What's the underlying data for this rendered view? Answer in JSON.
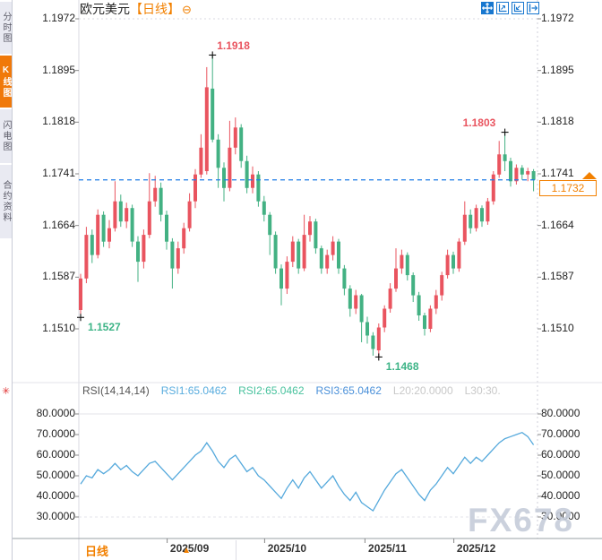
{
  "header": {
    "title": "欧元美元",
    "period": "【日线】",
    "collapse_glyph": "⊖"
  },
  "toolbar": {
    "icons": [
      {
        "name": "move-icon"
      },
      {
        "name": "zoom-in-axis-icon"
      },
      {
        "name": "zoom-out-axis-icon"
      },
      {
        "name": "pan-right-icon"
      }
    ]
  },
  "sidebar": {
    "tabs": [
      {
        "label": "分时图",
        "active": false
      },
      {
        "label": "K线图",
        "active": true
      },
      {
        "label": "闪电图",
        "active": false
      },
      {
        "label": "合约资料",
        "active": false
      }
    ]
  },
  "bottom": {
    "period_label": "日线",
    "arrow": "▲"
  },
  "watermark": "FX678",
  "colors": {
    "accent_orange": "#f28000",
    "up_red": "#e9545f",
    "down_green": "#43b183",
    "annotation_up": "#e9545f",
    "annotation_down": "#3db487",
    "rsi_line": "#55a9dc",
    "dashed_line": "#1f7ce8",
    "icon_blue": "#1877cf",
    "grid": "#e3e3e8",
    "axis": "#9aa0a6",
    "tick": "#888888"
  },
  "chart_data": {
    "type": "candlestick",
    "title": "欧元美元 日线 (EUR/USD Daily)",
    "main": {
      "y_ticks": [
        "1.1972",
        "1.1895",
        "1.1818",
        "1.1741",
        "1.1664",
        "1.1587",
        "1.1510"
      ],
      "ylim": [
        1.151,
        1.1972
      ],
      "current_price": "1.1732",
      "current_price_value": 1.1732,
      "x_labels": [
        {
          "label": "2025/09",
          "index": 19
        },
        {
          "label": "2025/10",
          "index": 36
        },
        {
          "label": "2025/11",
          "index": 53.5
        },
        {
          "label": "2025/12",
          "index": 69
        }
      ],
      "annotations": [
        {
          "text": "1.1918",
          "price": 1.1918,
          "index": 23,
          "trend": "up",
          "pos": "above-right"
        },
        {
          "text": "1.1803",
          "price": 1.1803,
          "index": 74,
          "trend": "up",
          "pos": "above-left"
        },
        {
          "text": "1.1527",
          "price": 1.1527,
          "index": 0,
          "trend": "down",
          "pos": "below-right"
        },
        {
          "text": "1.1468",
          "price": 1.1468,
          "index": 52,
          "trend": "down",
          "pos": "below-right"
        }
      ],
      "candles": [
        [
          1.1538,
          1.1592,
          1.1527,
          1.1585
        ],
        [
          1.1585,
          1.1662,
          1.1578,
          1.165
        ],
        [
          1.165,
          1.1658,
          1.1608,
          1.162
        ],
        [
          1.162,
          1.1688,
          1.1615,
          1.168
        ],
        [
          1.168,
          1.1685,
          1.1632,
          1.164
        ],
        [
          1.164,
          1.1672,
          1.163,
          1.166
        ],
        [
          1.166,
          1.173,
          1.1655,
          1.17
        ],
        [
          1.17,
          1.171,
          1.1662,
          1.167
        ],
        [
          1.167,
          1.1698,
          1.166,
          1.169
        ],
        [
          1.169,
          1.1695,
          1.1632,
          1.164
        ],
        [
          1.164,
          1.1648,
          1.158,
          1.161
        ],
        [
          1.161,
          1.1658,
          1.16,
          1.165
        ],
        [
          1.165,
          1.1742,
          1.1645,
          1.17
        ],
        [
          1.17,
          1.1738,
          1.1692,
          1.172
        ],
        [
          1.172,
          1.1728,
          1.167,
          1.168
        ],
        [
          1.168,
          1.1686,
          1.1628,
          1.164
        ],
        [
          1.164,
          1.1645,
          1.157,
          1.16
        ],
        [
          1.16,
          1.164,
          1.1592,
          1.163
        ],
        [
          1.163,
          1.1668,
          1.1622,
          1.166
        ],
        [
          1.166,
          1.1712,
          1.1655,
          1.17
        ],
        [
          1.17,
          1.1748,
          1.169,
          1.174
        ],
        [
          1.174,
          1.18,
          1.1735,
          1.178
        ],
        [
          1.1745,
          1.19,
          1.174,
          1.187
        ],
        [
          1.1868,
          1.1918,
          1.1788,
          1.1792
        ],
        [
          1.1792,
          1.18,
          1.172,
          1.175
        ],
        [
          1.175,
          1.1758,
          1.17,
          1.172
        ],
        [
          1.172,
          1.182,
          1.1715,
          1.178
        ],
        [
          1.178,
          1.1825,
          1.177,
          1.181
        ],
        [
          1.181,
          1.1815,
          1.175,
          1.176
        ],
        [
          1.176,
          1.1768,
          1.1712,
          1.172
        ],
        [
          1.172,
          1.1752,
          1.1712,
          1.174
        ],
        [
          1.174,
          1.1745,
          1.1692,
          1.17
        ],
        [
          1.17,
          1.1708,
          1.167,
          1.168
        ],
        [
          1.168,
          1.1684,
          1.162,
          1.165
        ],
        [
          1.165,
          1.1655,
          1.1592,
          1.16
        ],
        [
          1.16,
          1.1606,
          1.1545,
          1.157
        ],
        [
          1.157,
          1.1618,
          1.1562,
          1.161
        ],
        [
          1.161,
          1.1648,
          1.1602,
          1.164
        ],
        [
          1.164,
          1.1644,
          1.1592,
          1.16
        ],
        [
          1.16,
          1.168,
          1.1596,
          1.165
        ],
        [
          1.165,
          1.1678,
          1.164,
          1.167
        ],
        [
          1.167,
          1.1674,
          1.1622,
          1.163
        ],
        [
          1.163,
          1.1634,
          1.1592,
          1.16
        ],
        [
          1.16,
          1.1628,
          1.1592,
          1.162
        ],
        [
          1.162,
          1.1648,
          1.1612,
          1.164
        ],
        [
          1.164,
          1.1644,
          1.1592,
          1.16
        ],
        [
          1.16,
          1.1605,
          1.156,
          1.157
        ],
        [
          1.157,
          1.1575,
          1.1528,
          1.154
        ],
        [
          1.154,
          1.1568,
          1.1532,
          1.156
        ],
        [
          1.156,
          1.1562,
          1.149,
          1.152
        ],
        [
          1.152,
          1.1528,
          1.1488,
          1.15
        ],
        [
          1.15,
          1.1505,
          1.147,
          1.148
        ],
        [
          1.1478,
          1.1518,
          1.1468,
          1.1512
        ],
        [
          1.1512,
          1.1545,
          1.1505,
          1.154
        ],
        [
          1.154,
          1.1578,
          1.1534,
          1.157
        ],
        [
          1.157,
          1.163,
          1.1565,
          1.16
        ],
        [
          1.16,
          1.1628,
          1.1592,
          1.162
        ],
        [
          1.162,
          1.1624,
          1.1582,
          1.159
        ],
        [
          1.159,
          1.1594,
          1.155,
          1.156
        ],
        [
          1.156,
          1.1565,
          1.1522,
          1.153
        ],
        [
          1.153,
          1.1534,
          1.15,
          1.151
        ],
        [
          1.151,
          1.1545,
          1.1505,
          1.154
        ],
        [
          1.154,
          1.1568,
          1.1532,
          1.156
        ],
        [
          1.156,
          1.1595,
          1.1552,
          1.159
        ],
        [
          1.159,
          1.1628,
          1.1585,
          1.162
        ],
        [
          1.162,
          1.1625,
          1.1592,
          1.16
        ],
        [
          1.16,
          1.1645,
          1.1595,
          1.164
        ],
        [
          1.164,
          1.17,
          1.1635,
          1.168
        ],
        [
          1.168,
          1.1688,
          1.1652,
          1.166
        ],
        [
          1.166,
          1.1695,
          1.1655,
          1.169
        ],
        [
          1.169,
          1.1694,
          1.1662,
          1.167
        ],
        [
          1.167,
          1.1705,
          1.1665,
          1.17
        ],
        [
          1.17,
          1.1745,
          1.1695,
          1.174
        ],
        [
          1.174,
          1.179,
          1.1735,
          1.177
        ],
        [
          1.177,
          1.1803,
          1.1745,
          1.176
        ],
        [
          1.176,
          1.1765,
          1.1722,
          1.173
        ],
        [
          1.173,
          1.1755,
          1.1725,
          1.175
        ],
        [
          1.175,
          1.1754,
          1.1732,
          1.174
        ],
        [
          1.174,
          1.175,
          1.173,
          1.1745
        ],
        [
          1.1745,
          1.1748,
          1.1715,
          1.1732
        ]
      ]
    },
    "rsi": {
      "header": [
        {
          "text": "RSI(14,14,14)",
          "color": "#555555"
        },
        {
          "text": "RSI1:65.0462",
          "color": "#58acde"
        },
        {
          "text": "RSI2:65.0462",
          "color": "#49c29e"
        },
        {
          "text": "RSI3:65.0462",
          "color": "#4a90d9"
        },
        {
          "text": "L20:20.0000",
          "color": "#c8c8c8"
        },
        {
          "text": "L30:30.",
          "color": "#c8c8c8"
        }
      ],
      "y_ticks": [
        "80.0000",
        "70.0000",
        "60.0000",
        "50.0000",
        "40.0000",
        "30.0000"
      ],
      "ylim": [
        30,
        80
      ],
      "ref_lines": [
        80,
        30
      ],
      "values": [
        46,
        50,
        49,
        53,
        51,
        53,
        56,
        53,
        55,
        52,
        50,
        53,
        56,
        57,
        54,
        51,
        48,
        51,
        54,
        57,
        60,
        62,
        66,
        62,
        57,
        54,
        58,
        60,
        56,
        52,
        54,
        50,
        48,
        45,
        42,
        39,
        44,
        48,
        44,
        49,
        52,
        48,
        44,
        47,
        50,
        45,
        41,
        38,
        42,
        37,
        35,
        33,
        38,
        43,
        47,
        51,
        53,
        49,
        45,
        41,
        38,
        43,
        46,
        50,
        54,
        51,
        55,
        59,
        56,
        59,
        57,
        60,
        63,
        66,
        68,
        69,
        70,
        71,
        69,
        65
      ]
    }
  }
}
